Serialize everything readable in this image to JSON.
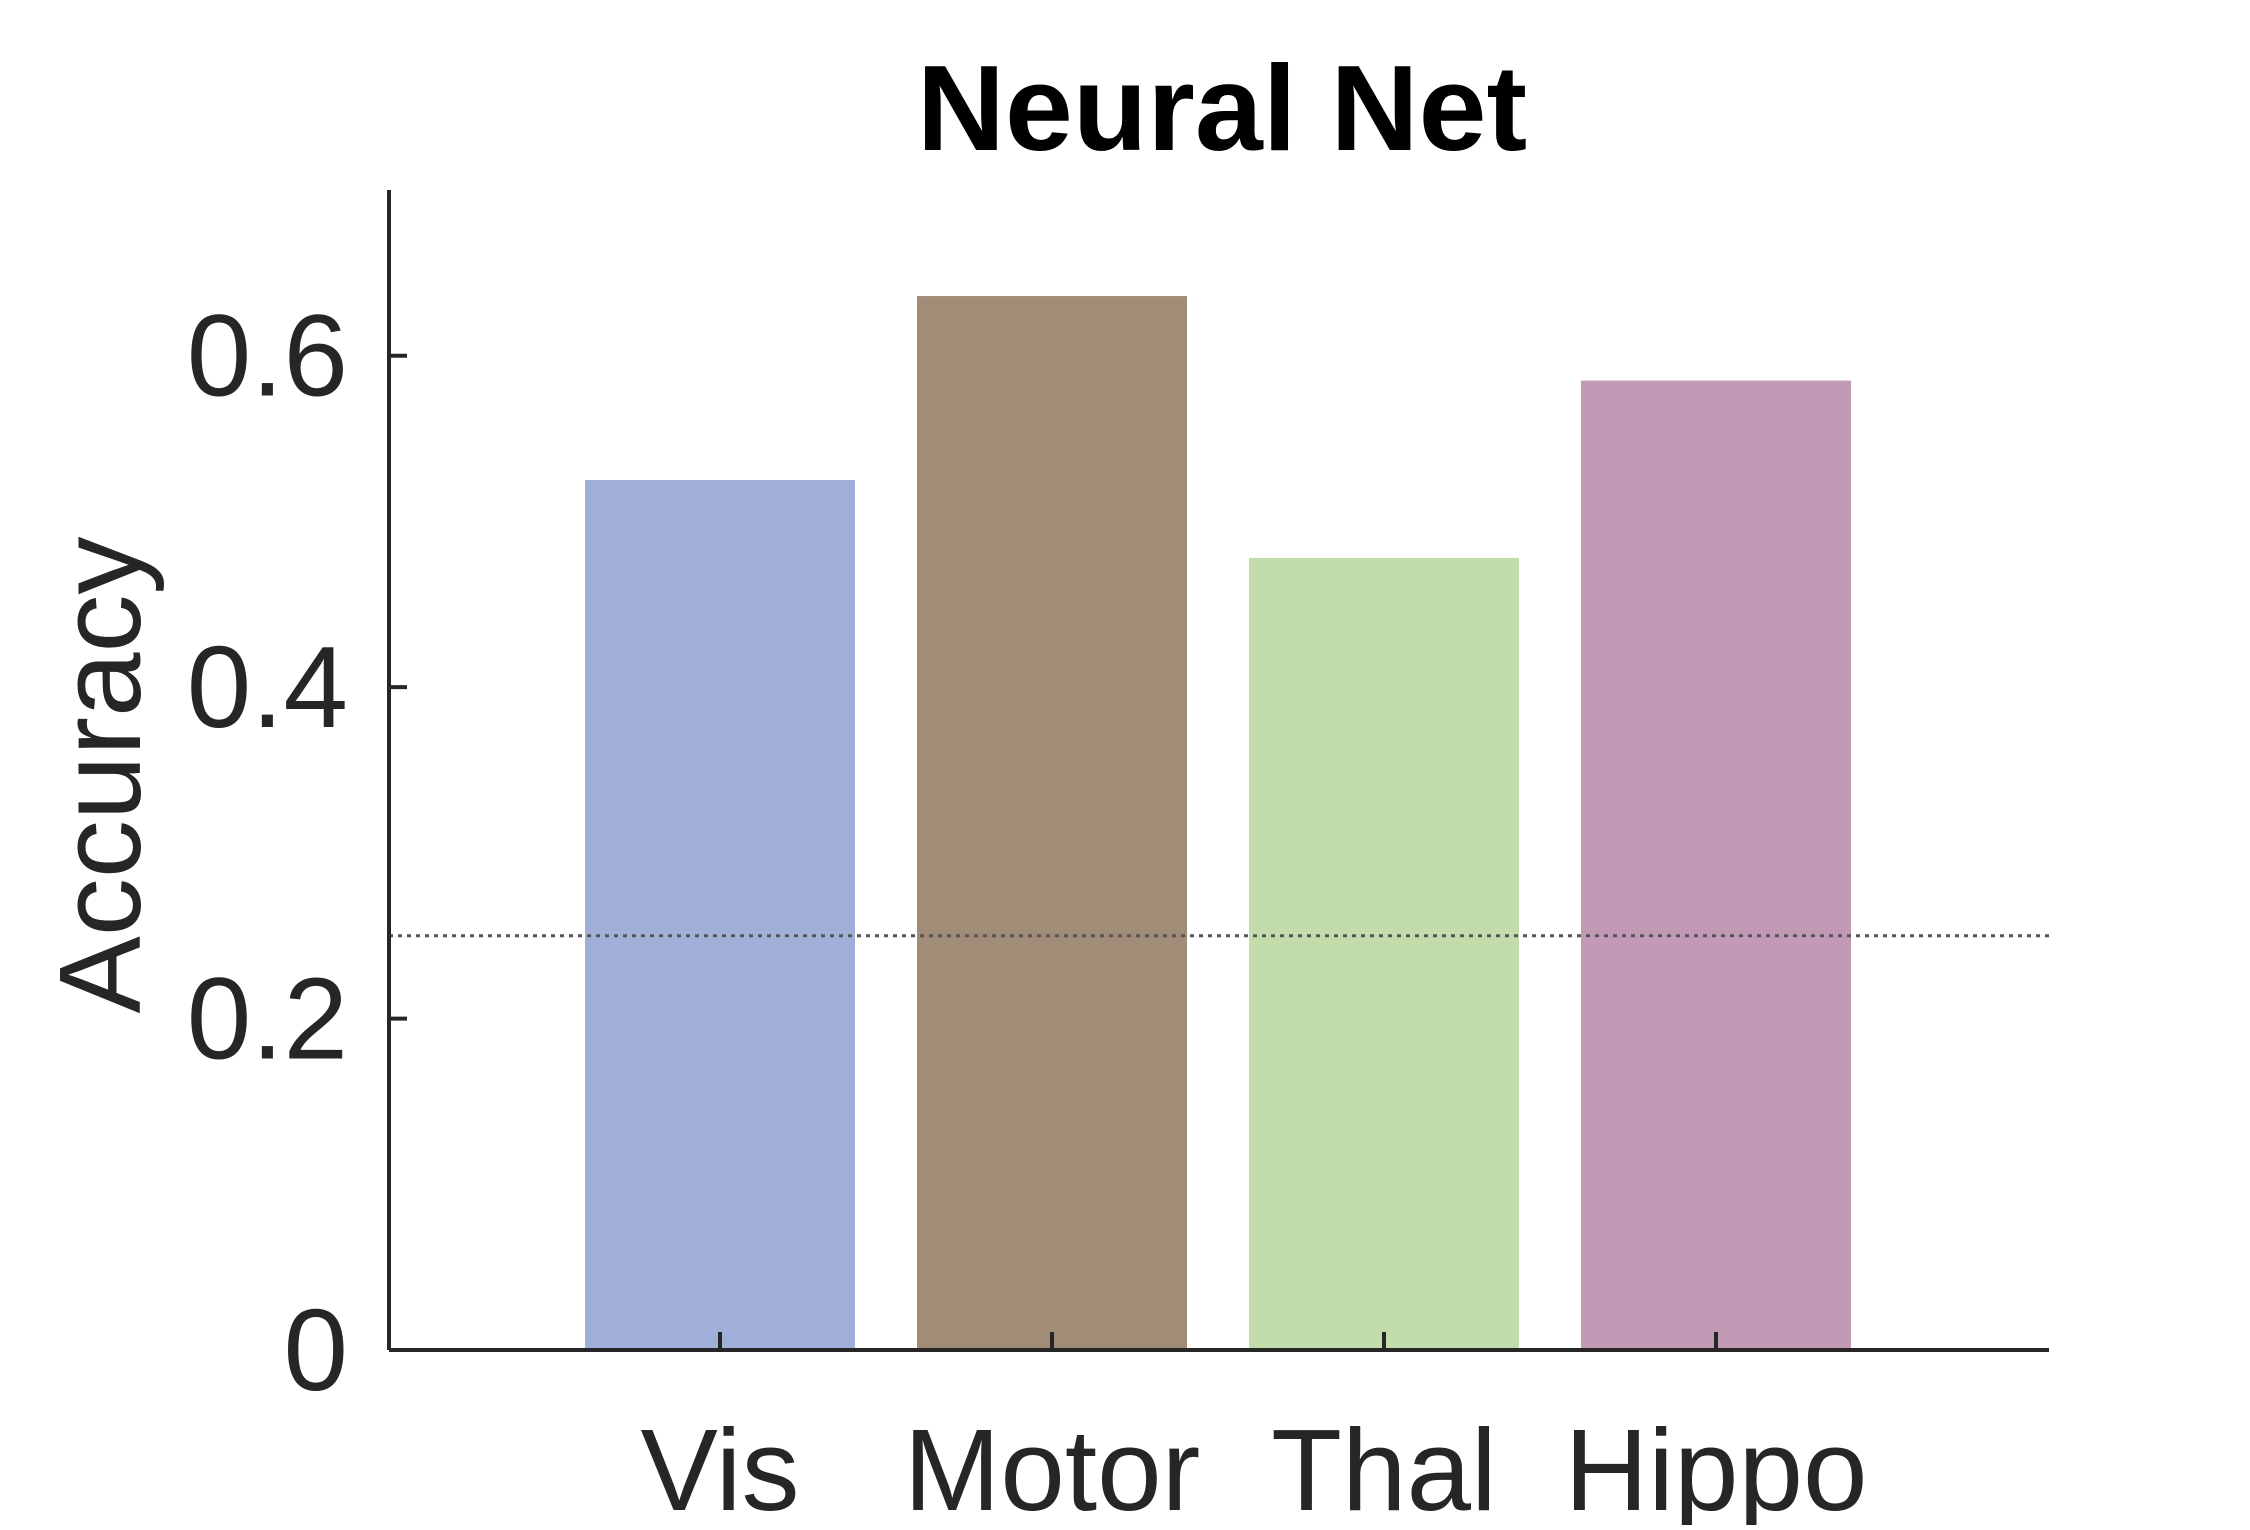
{
  "chart_data": {
    "type": "bar",
    "title": "Neural Net",
    "xlabel": "",
    "ylabel": "Accuracy",
    "categories": [
      "Vis",
      "Motor",
      "Thal",
      "Hippo"
    ],
    "values": [
      0.525,
      0.636,
      0.478,
      0.585
    ],
    "colors": [
      "#9fafd7",
      "#a18c77",
      "#c3dcac",
      "#c39ab5"
    ],
    "ylim": [
      0,
      0.7
    ],
    "yticks": [
      0,
      0.2,
      0.4,
      0.6
    ],
    "ytick_labels": [
      "0",
      "0.2",
      "0.4",
      "0.6"
    ],
    "reference_line": {
      "y": 0.25,
      "style": "dotted",
      "color": "#555555"
    },
    "grid": false,
    "legend": "none"
  }
}
